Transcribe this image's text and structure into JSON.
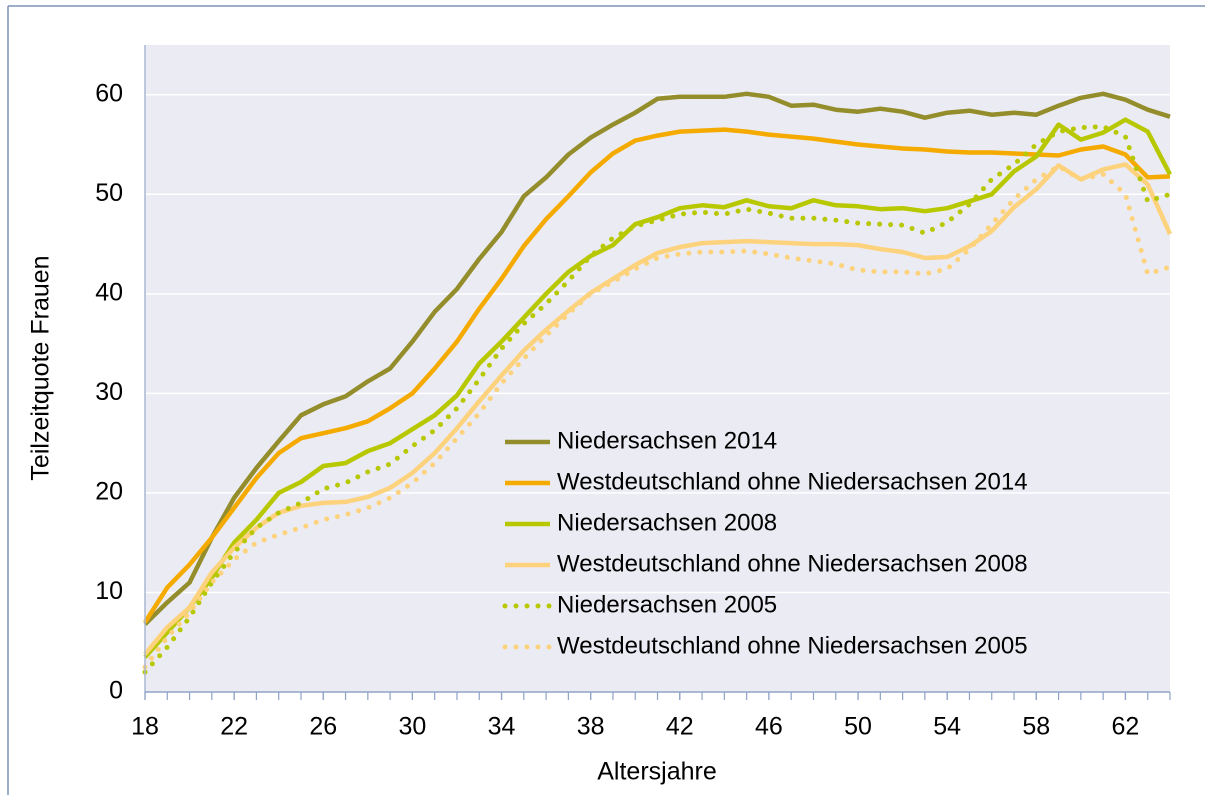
{
  "chart_data": {
    "type": "line",
    "x_label": "Altersjahre",
    "y_label": "Teilzeitquote Frauen",
    "x": [
      18,
      19,
      20,
      21,
      22,
      23,
      24,
      25,
      26,
      27,
      28,
      29,
      30,
      31,
      32,
      33,
      34,
      35,
      36,
      37,
      38,
      39,
      40,
      41,
      42,
      43,
      44,
      45,
      46,
      47,
      48,
      49,
      50,
      51,
      52,
      53,
      54,
      55,
      56,
      57,
      58,
      59,
      60,
      61,
      62,
      63,
      64
    ],
    "xlim": [
      18,
      64
    ],
    "xticks": [
      18,
      22,
      26,
      30,
      34,
      38,
      42,
      46,
      50,
      54,
      58,
      62
    ],
    "ylim": [
      0,
      65
    ],
    "yticks": [
      0,
      10,
      20,
      30,
      40,
      50,
      60
    ],
    "grid": true,
    "series": [
      {
        "name": "Niedersachsen 2014",
        "color": "#948d2c",
        "line_style": "solid",
        "values": [
          6.8,
          9,
          11,
          15.5,
          19.5,
          22.5,
          25.2,
          27.8,
          28.9,
          29.7,
          31.2,
          32.5,
          35.2,
          38.2,
          40.5,
          43.5,
          46.2,
          49.8,
          51.7,
          54,
          55.7,
          57,
          58.2,
          59.6,
          59.8,
          59.8,
          59.8,
          60.1,
          59.8,
          58.9,
          59,
          58.5,
          58.3,
          58.6,
          58.3,
          57.7,
          58.2,
          58.4,
          58,
          58.2,
          58,
          58.9,
          59.7,
          60.1,
          59.5,
          58.5,
          57.8
        ]
      },
      {
        "name": "Westdeutschland ohne Niedersachsen 2014",
        "color": "#f5aa00",
        "line_style": "solid",
        "values": [
          7,
          10.5,
          12.8,
          15.5,
          18.5,
          21.5,
          24,
          25.5,
          26,
          26.5,
          27.2,
          28.5,
          30,
          32.5,
          35.2,
          38.5,
          41.5,
          44.8,
          47.5,
          49.8,
          52.2,
          54.1,
          55.4,
          55.9,
          56.3,
          56.4,
          56.5,
          56.3,
          56,
          55.8,
          55.6,
          55.3,
          55,
          54.8,
          54.6,
          54.5,
          54.3,
          54.2,
          54.2,
          54.1,
          54,
          53.9,
          54.5,
          54.8,
          54,
          51.7,
          51.8
        ]
      },
      {
        "name": "Niedersachsen 2008",
        "color": "#b8c800",
        "line_style": "solid",
        "values": [
          3.5,
          6,
          8.5,
          11.5,
          15,
          17.3,
          20,
          21.1,
          22.7,
          23,
          24.2,
          25,
          26.4,
          27.8,
          29.8,
          33,
          35.2,
          37.6,
          40,
          42.2,
          43.8,
          44.9,
          47,
          47.7,
          48.6,
          48.9,
          48.7,
          49.4,
          48.8,
          48.6,
          49.4,
          48.9,
          48.8,
          48.5,
          48.6,
          48.3,
          48.6,
          49.3,
          50,
          52.3,
          53.8,
          57,
          55.5,
          56.2,
          57.5,
          56.3,
          52
        ]
      },
      {
        "name": "Westdeutschland ohne Niedersachsen 2008",
        "color": "#fdd27c",
        "line_style": "solid",
        "values": [
          3.8,
          6.5,
          8.5,
          12,
          14.5,
          16.5,
          18,
          18.7,
          19,
          19.1,
          19.6,
          20.5,
          22,
          24,
          26.5,
          29.2,
          31.8,
          34.3,
          36.4,
          38.3,
          40.1,
          41.5,
          42.9,
          44.1,
          44.7,
          45.1,
          45.2,
          45.3,
          45.2,
          45.1,
          45,
          45,
          44.9,
          44.5,
          44.2,
          43.6,
          43.7,
          44.8,
          46.3,
          48.7,
          50.5,
          52.9,
          51.5,
          52.5,
          53,
          51,
          46
        ]
      },
      {
        "name": "Niedersachsen 2005",
        "color": "#b8c800",
        "line_style": "dotted",
        "values": [
          2,
          4.5,
          7.5,
          11,
          14,
          16.5,
          18,
          19,
          20.4,
          21,
          22.1,
          22.9,
          24.7,
          26.3,
          28.5,
          31.4,
          34.5,
          37,
          39,
          41.3,
          43.8,
          45.6,
          46.8,
          47.4,
          48,
          48.2,
          48,
          48.5,
          48.1,
          47.6,
          47.6,
          47.4,
          47.1,
          47,
          46.9,
          46.1,
          47.2,
          49,
          51.5,
          53,
          55,
          56.3,
          56.7,
          56.8,
          55.8,
          49.3,
          50
        ]
      },
      {
        "name": "Westdeutschland ohne Niedersachsen 2005",
        "color": "#fdd27c",
        "line_style": "dotted",
        "values": [
          2.5,
          5.5,
          8,
          11,
          13.3,
          15,
          15.8,
          16.5,
          17.3,
          17.8,
          18.5,
          19.5,
          21,
          23,
          25.5,
          28,
          31,
          33.5,
          35.8,
          38,
          40,
          41.2,
          42.5,
          43.6,
          44,
          44.2,
          44.2,
          44.3,
          44,
          43.6,
          43.3,
          43,
          42.4,
          42.2,
          42.2,
          42,
          42.5,
          44.5,
          47,
          49.5,
          51.5,
          52.8,
          51.5,
          52,
          50,
          42,
          42.7
        ]
      }
    ]
  }
}
